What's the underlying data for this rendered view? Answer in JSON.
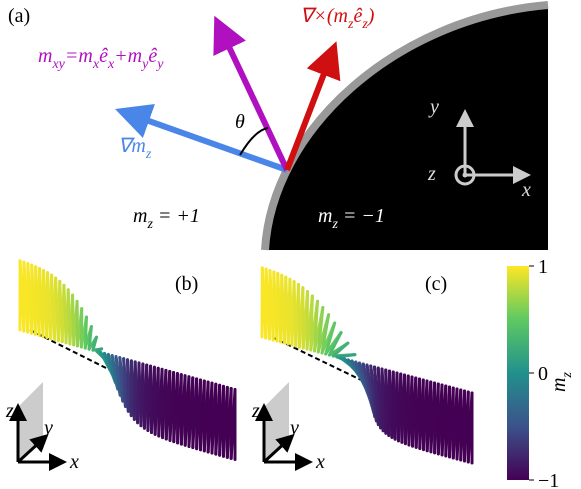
{
  "panel_a": {
    "label": "(a)",
    "m_xy": [
      [
        "m",
        "xy"
      ],
      [
        "=m",
        "x"
      ],
      [
        "ê",
        "x"
      ],
      [
        "+m",
        "y"
      ],
      [
        "ê",
        "y"
      ]
    ],
    "curl": [
      [
        "∇×(m",
        "z"
      ],
      [
        "ê",
        "z"
      ],
      [
        ")"
      ]
    ],
    "grad": [
      [
        "∇m",
        "z"
      ]
    ],
    "theta": "θ",
    "axes": {
      "x": "x",
      "y": "y",
      "z": "z"
    },
    "region_left": [
      [
        "m",
        "z"
      ],
      [
        " = +1"
      ]
    ],
    "region_right": [
      [
        "m",
        "z"
      ],
      [
        " = −1"
      ]
    ]
  },
  "panel_b": {
    "label": "(b)",
    "axes": {
      "x": "x",
      "y": "y",
      "z": "z"
    }
  },
  "panel_c": {
    "label": "(c)",
    "axes": {
      "x": "x",
      "y": "y",
      "z": "z"
    }
  },
  "colorbar": {
    "lim": [
      -1,
      1
    ],
    "ticks": [
      1,
      0,
      {
        "value": -1,
        "label": "−1"
      }
    ],
    "label": [
      [
        "m",
        "z"
      ]
    ]
  }
}
